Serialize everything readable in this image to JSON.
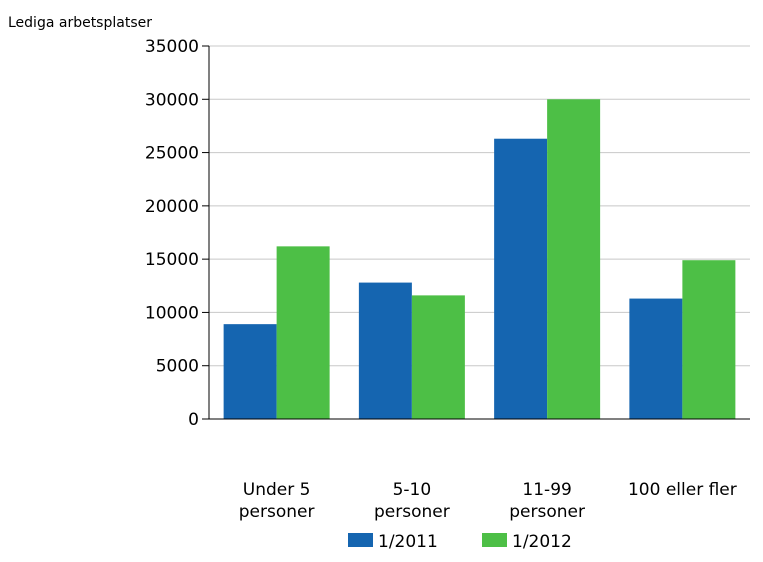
{
  "chart_data": {
    "type": "bar",
    "ylabel": "Lediga arbetsplatser",
    "xlabel": "",
    "categories": [
      [
        "Under 5",
        "personer"
      ],
      [
        "5-10",
        "personer"
      ],
      [
        "11-99",
        "personer"
      ],
      [
        "100 eller fler"
      ]
    ],
    "series": [
      {
        "name": "1/2011",
        "color": "#1565b0",
        "values": [
          8900,
          12800,
          26300,
          11300
        ]
      },
      {
        "name": "1/2012",
        "color": "#4dbf46",
        "values": [
          16200,
          11600,
          30000,
          14900
        ]
      }
    ],
    "ylim": [
      0,
      35000
    ],
    "yticks": [
      0,
      5000,
      10000,
      15000,
      20000,
      25000,
      30000,
      35000
    ],
    "grid": true,
    "legend_position": "bottom-center"
  }
}
